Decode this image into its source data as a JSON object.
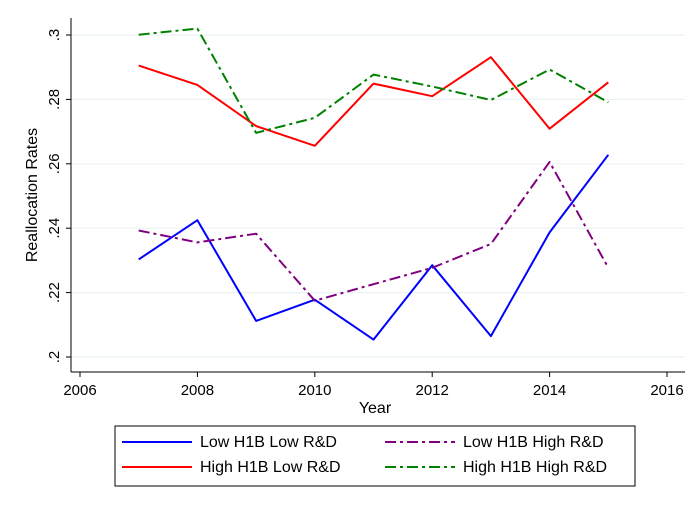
{
  "chart_data": {
    "type": "line",
    "title": "",
    "xlabel": "Year",
    "ylabel": "Reallocation Rates",
    "xlim": [
      2006,
      2016
    ],
    "ylim": [
      0.2,
      0.305
    ],
    "x_ticks": [
      2006,
      2008,
      2010,
      2012,
      2014,
      2016
    ],
    "x_tick_labels": [
      "2006",
      "2008",
      "2010",
      "2012",
      "2014",
      "2016"
    ],
    "y_ticks": [
      0.2,
      0.22,
      0.24,
      0.26,
      0.28,
      0.3
    ],
    "y_tick_labels": [
      ".2",
      ".22",
      ".24",
      ".26",
      ".28",
      ".3"
    ],
    "grid": true,
    "legend_position": "bottom",
    "x": [
      2007,
      2008,
      2009,
      2010,
      2011,
      2012,
      2013,
      2014,
      2015
    ],
    "series": [
      {
        "name": "Low H1B Low R&D",
        "color": "#0000ff",
        "dash": "solid",
        "values": [
          0.2303,
          0.2425,
          0.2112,
          0.2178,
          0.2054,
          0.2285,
          0.2065,
          0.2387,
          0.2628
        ]
      },
      {
        "name": "High H1B Low R&D",
        "color": "#ff0000",
        "dash": "solid",
        "values": [
          0.2905,
          0.2845,
          0.2717,
          0.2656,
          0.2849,
          0.281,
          0.2931,
          0.2709,
          0.2853
        ]
      },
      {
        "name": "Low H1B High R&D",
        "color": "#800080",
        "dash": "dashdot",
        "values": [
          0.2393,
          0.2356,
          0.2383,
          0.2175,
          0.2226,
          0.2277,
          0.2351,
          0.2606,
          0.2277
        ]
      },
      {
        "name": "High H1B High R&D",
        "color": "#008000",
        "dash": "dashdot",
        "values": [
          0.3001,
          0.302,
          0.2696,
          0.2743,
          0.2877,
          0.284,
          0.2798,
          0.2893,
          0.2791
        ]
      }
    ]
  }
}
